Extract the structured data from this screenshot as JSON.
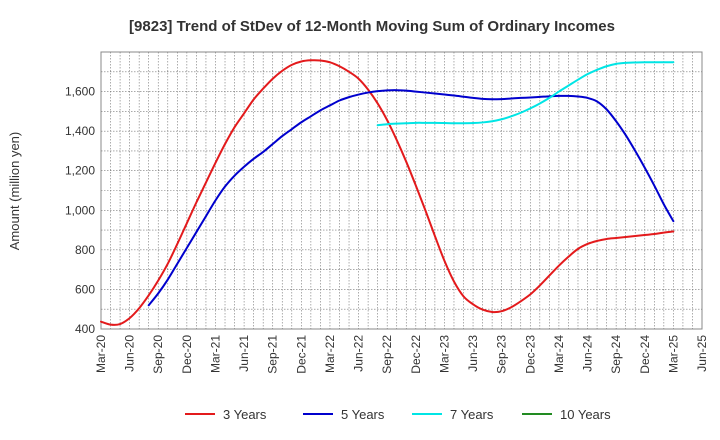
{
  "chart_data": {
    "type": "line",
    "title": "[9823]  Trend of StDev of 12-Month Moving Sum of Ordinary Incomes",
    "ylabel": "Amount (million yen)",
    "xlabel": "",
    "ylim": [
      400,
      1800
    ],
    "yticks": [
      400,
      600,
      800,
      1000,
      1200,
      1400,
      1600
    ],
    "ytick_labels": [
      "400",
      "600",
      "800",
      "1,000",
      "1,200",
      "1,400",
      "1,600"
    ],
    "x_start": "Mar-20",
    "x_end": "Jun-25",
    "xtick_labels": [
      "Mar-20",
      "Jun-20",
      "Sep-20",
      "Dec-20",
      "Mar-21",
      "Jun-21",
      "Sep-21",
      "Dec-21",
      "Mar-22",
      "Jun-22",
      "Sep-22",
      "Dec-22",
      "Mar-23",
      "Jun-23",
      "Sep-23",
      "Dec-23",
      "Mar-24",
      "Jun-24",
      "Sep-24",
      "Dec-24",
      "Mar-25",
      "Jun-25"
    ],
    "grid": true,
    "legend_position": "bottom",
    "series": [
      {
        "name": "3 Years",
        "color": "#e31a1c",
        "x": [
          "Mar-20",
          "Apr-20",
          "May-20",
          "Jun-20",
          "Jul-20",
          "Aug-20",
          "Sep-20",
          "Oct-20",
          "Nov-20",
          "Dec-20",
          "Jan-21",
          "Feb-21",
          "Mar-21",
          "Apr-21",
          "May-21",
          "Jun-21",
          "Jul-21",
          "Aug-21",
          "Sep-21",
          "Oct-21",
          "Nov-21",
          "Dec-21",
          "Jan-22",
          "Feb-22",
          "Mar-22",
          "Apr-22",
          "May-22",
          "Jun-22",
          "Jul-22",
          "Aug-22",
          "Sep-22",
          "Oct-22",
          "Nov-22",
          "Dec-22",
          "Jan-23",
          "Feb-23",
          "Mar-23",
          "Apr-23",
          "May-23",
          "Jun-23",
          "Jul-23",
          "Aug-23",
          "Sep-23",
          "Oct-23",
          "Nov-23",
          "Dec-23",
          "Jan-24",
          "Feb-24",
          "Mar-24",
          "Apr-24",
          "May-24",
          "Jun-24",
          "Jul-24",
          "Aug-24",
          "Sep-24",
          "Oct-24",
          "Nov-24",
          "Dec-24",
          "Jan-25",
          "Feb-25",
          "Mar-25"
        ],
        "values": [
          437,
          422,
          425,
          455,
          505,
          570,
          645,
          730,
          830,
          935,
          1040,
          1140,
          1240,
          1335,
          1420,
          1490,
          1560,
          1615,
          1665,
          1705,
          1735,
          1752,
          1758,
          1757,
          1748,
          1728,
          1700,
          1665,
          1610,
          1540,
          1455,
          1355,
          1245,
          1125,
          1000,
          870,
          745,
          640,
          565,
          525,
          498,
          486,
          490,
          510,
          540,
          575,
          620,
          670,
          720,
          765,
          805,
          830,
          845,
          855,
          860,
          865,
          870,
          875,
          880,
          887,
          893
        ]
      },
      {
        "name": "5 Years",
        "color": "#0000cd",
        "x": [
          "Aug-20",
          "Sep-20",
          "Oct-20",
          "Nov-20",
          "Dec-20",
          "Jan-21",
          "Feb-21",
          "Mar-21",
          "Apr-21",
          "May-21",
          "Jun-21",
          "Jul-21",
          "Aug-21",
          "Sep-21",
          "Oct-21",
          "Nov-21",
          "Dec-21",
          "Jan-22",
          "Feb-22",
          "Mar-22",
          "Apr-22",
          "May-22",
          "Jun-22",
          "Jul-22",
          "Aug-22",
          "Sep-22",
          "Oct-22",
          "Nov-22",
          "Dec-22",
          "Jan-23",
          "Feb-23",
          "Mar-23",
          "Apr-23",
          "May-23",
          "Jun-23",
          "Jul-23",
          "Aug-23",
          "Sep-23",
          "Oct-23",
          "Nov-23",
          "Dec-23",
          "Jan-24",
          "Feb-24",
          "Mar-24",
          "Apr-24",
          "May-24",
          "Jun-24",
          "Jul-24",
          "Aug-24",
          "Sep-24",
          "Oct-24",
          "Nov-24",
          "Dec-24",
          "Jan-25",
          "Feb-25",
          "Mar-25"
        ],
        "values": [
          520,
          580,
          650,
          730,
          810,
          890,
          970,
          1050,
          1120,
          1175,
          1220,
          1260,
          1295,
          1335,
          1375,
          1410,
          1445,
          1475,
          1505,
          1530,
          1555,
          1572,
          1585,
          1595,
          1602,
          1606,
          1607,
          1605,
          1600,
          1595,
          1590,
          1585,
          1580,
          1574,
          1568,
          1563,
          1561,
          1562,
          1565,
          1568,
          1570,
          1573,
          1576,
          1578,
          1578,
          1575,
          1568,
          1550,
          1510,
          1450,
          1380,
          1300,
          1215,
          1125,
          1030,
          945
        ]
      },
      {
        "name": "7 Years",
        "color": "#00e5e5",
        "x": [
          "Aug-22",
          "Sep-22",
          "Oct-22",
          "Nov-22",
          "Dec-22",
          "Jan-23",
          "Feb-23",
          "Mar-23",
          "Apr-23",
          "May-23",
          "Jun-23",
          "Jul-23",
          "Aug-23",
          "Sep-23",
          "Oct-23",
          "Nov-23",
          "Dec-23",
          "Jan-24",
          "Feb-24",
          "Mar-24",
          "Apr-24",
          "May-24",
          "Jun-24",
          "Jul-24",
          "Aug-24",
          "Sep-24",
          "Oct-24",
          "Nov-24",
          "Dec-24",
          "Jan-25",
          "Feb-25",
          "Mar-25"
        ],
        "values": [
          1430,
          1435,
          1438,
          1440,
          1442,
          1442,
          1442,
          1441,
          1440,
          1440,
          1441,
          1444,
          1450,
          1460,
          1475,
          1493,
          1515,
          1540,
          1568,
          1600,
          1630,
          1660,
          1688,
          1710,
          1728,
          1740,
          1745,
          1747,
          1748,
          1748,
          1748,
          1748
        ]
      },
      {
        "name": "10 Years",
        "color": "#228b22",
        "x": [],
        "values": []
      }
    ]
  }
}
